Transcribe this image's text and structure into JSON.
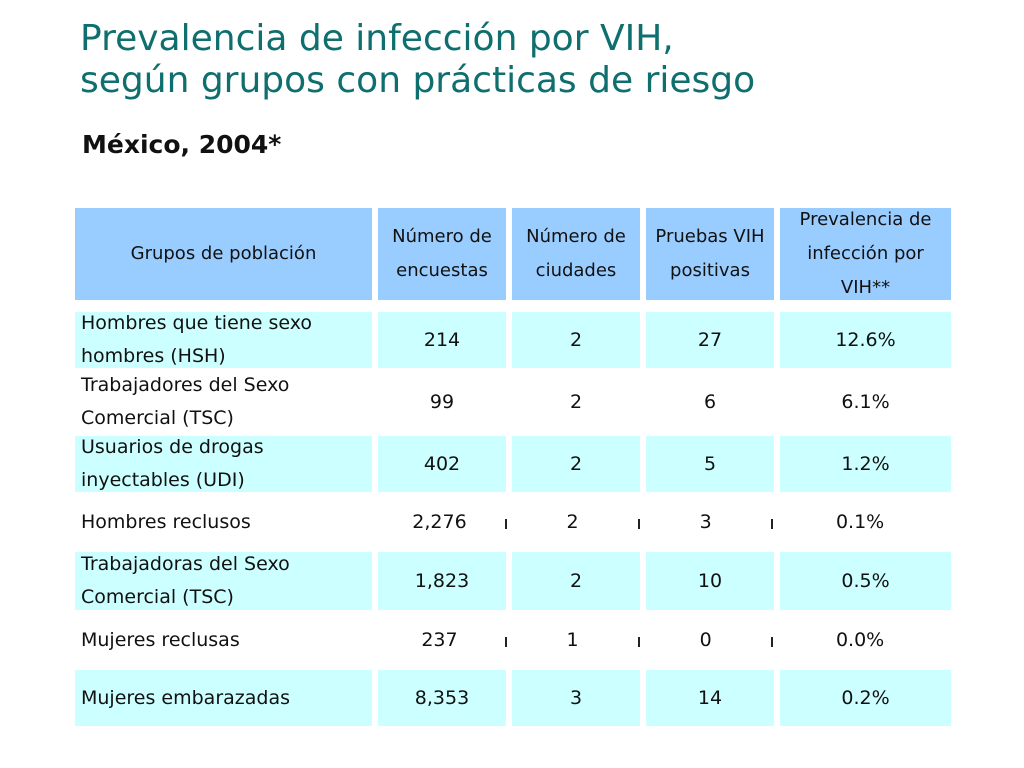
{
  "title_line1": "Prevalencia de infección por VIH,",
  "title_line2": "según  grupos con prácticas de riesgo",
  "subtitle": "México, 2004*",
  "table": {
    "headers": {
      "group": "Grupos de población",
      "surveys": "Número de encuestas",
      "cities": "Número de ciudades",
      "positive": "Pruebas VIH positivas",
      "prevalence": "Prevalencia de infección por VIH**"
    },
    "rows": [
      {
        "group": "Hombres que tiene sexo hombres (HSH)",
        "surveys": "214",
        "cities": "2",
        "positive": "27",
        "prevalence": "12.6%"
      },
      {
        "group": "Trabajadores del Sexo Comercial (TSC)",
        "surveys": "99",
        "cities": "2",
        "positive": "6",
        "prevalence": "6.1%"
      },
      {
        "group": "Usuarios de drogas inyectables (UDI)",
        "surveys": "402",
        "cities": "2",
        "positive": "5",
        "prevalence": "1.2%"
      },
      {
        "group": "Hombres reclusos",
        "surveys": "2,276",
        "cities": "2",
        "positive": "3",
        "prevalence": "0.1%"
      },
      {
        "group": "Trabajadoras del Sexo Comercial (TSC)",
        "surveys": "1,823",
        "cities": "2",
        "positive": "10",
        "prevalence": "0.5%"
      },
      {
        "group": "Mujeres reclusas",
        "surveys": "237",
        "cities": "1",
        "positive": "0",
        "prevalence": "0.0%"
      },
      {
        "group": "Mujeres embarazadas",
        "surveys": "8,353",
        "cities": "3",
        "positive": "14",
        "prevalence": "0.2%"
      }
    ]
  },
  "colors": {
    "title": "#0f6e6e",
    "header_bg": "#99ccff",
    "row_shaded_bg": "#ccffff",
    "row_white_bg": "#ffffff"
  }
}
